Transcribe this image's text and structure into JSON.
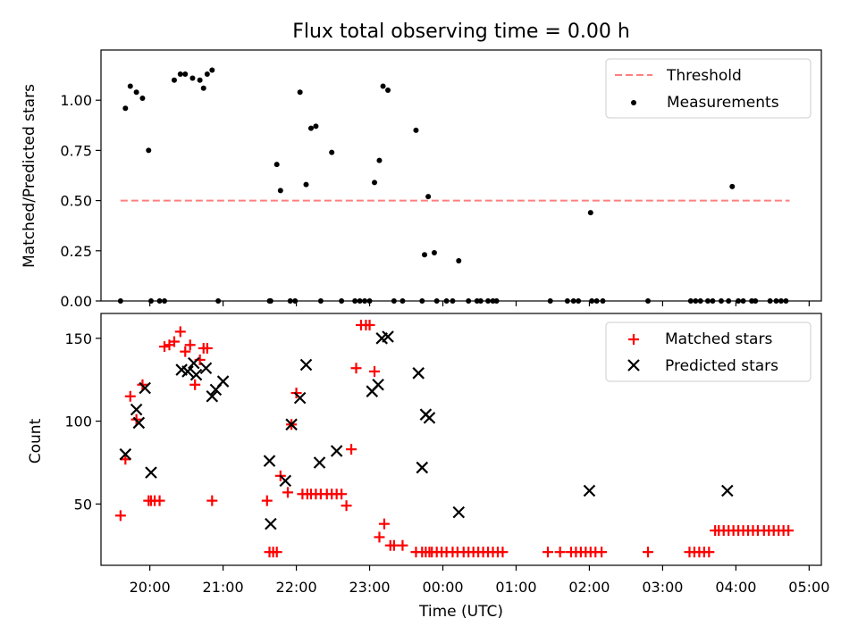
{
  "chart_data": [
    {
      "type": "scatter",
      "title": "Flux total observing time = 0.00 h",
      "xlabel": "",
      "ylabel": "Matched/Predicted stars",
      "xlim": [
        "19:20",
        "05:10"
      ],
      "ylim": [
        0,
        1.25
      ],
      "yticks": [
        "0.00",
        "0.25",
        "0.50",
        "0.75",
        "1.00"
      ],
      "yticks_values": [
        0,
        0.25,
        0.5,
        0.75,
        1.0
      ],
      "legend": "top-right",
      "threshold": {
        "name": "Threshold",
        "value": 0.5,
        "x_start": "19:36",
        "x_end": "04:44",
        "color": "#ff7f7f"
      },
      "series": [
        {
          "name": "Measurements",
          "color": "#000000",
          "x": [
            "19:36",
            "19:40",
            "19:44",
            "19:49",
            "19:54",
            "19:59",
            "20:01",
            "20:08",
            "20:12",
            "20:20",
            "20:25",
            "20:29",
            "20:35",
            "20:41",
            "20:44",
            "20:47",
            "20:51",
            "20:56",
            "21:38",
            "21:39",
            "21:44",
            "21:47",
            "21:55",
            "21:59",
            "22:03",
            "22:08",
            "22:12",
            "22:16",
            "22:20",
            "22:29",
            "22:37",
            "22:48",
            "22:52",
            "22:56",
            "23:00",
            "23:04",
            "23:08",
            "23:11",
            "23:15",
            "23:20",
            "23:27",
            "23:38",
            "23:43",
            "23:45",
            "23:48",
            "23:53",
            "23:55",
            "00:03",
            "00:08",
            "00:13",
            "00:21",
            "00:28",
            "00:31",
            "00:37",
            "00:41",
            "00:44",
            "01:28",
            "01:42",
            "01:47",
            "01:51",
            "02:01",
            "02:02",
            "02:06",
            "02:11",
            "02:48",
            "03:23",
            "03:27",
            "03:31",
            "03:37",
            "03:41",
            "03:48",
            "03:54",
            "03:57",
            "04:02",
            "04:06",
            "04:13",
            "04:16",
            "04:28",
            "04:33",
            "04:37",
            "04:41"
          ],
          "y": [
            0,
            0.96,
            1.07,
            1.04,
            1.01,
            0.75,
            0,
            0,
            0,
            1.1,
            1.13,
            1.13,
            1.11,
            1.1,
            1.06,
            1.13,
            1.15,
            0,
            0,
            0,
            0.68,
            0.55,
            0,
            0,
            1.04,
            0.58,
            0.86,
            0.87,
            0,
            0.74,
            0,
            0,
            0,
            0,
            0,
            0.59,
            0.7,
            1.07,
            1.05,
            0,
            0,
            0.85,
            0,
            0.23,
            0.52,
            0.24,
            0,
            0,
            0,
            0.2,
            0,
            0,
            0,
            0,
            0,
            0,
            0,
            0,
            0,
            0,
            0.44,
            0,
            0,
            0,
            0,
            0,
            0,
            0,
            0,
            0,
            0,
            0,
            0.57,
            0,
            0,
            0,
            0,
            0,
            0,
            0,
            0
          ]
        }
      ]
    },
    {
      "type": "scatter",
      "title": "",
      "xlabel": "Time (UTC)",
      "ylabel": "Count",
      "xlim": [
        "19:20",
        "05:10"
      ],
      "ylim": [
        13,
        165
      ],
      "xticks": [
        "20:00",
        "21:00",
        "22:00",
        "23:00",
        "00:00",
        "01:00",
        "02:00",
        "03:00",
        "04:00",
        "05:00"
      ],
      "xticks_values": [
        "20:00",
        "21:00",
        "22:00",
        "23:00",
        "00:00",
        "01:00",
        "02:00",
        "03:00",
        "04:00",
        "05:00"
      ],
      "yticks": [
        "50",
        "100",
        "150"
      ],
      "yticks_values": [
        50,
        100,
        150
      ],
      "legend": "top-right",
      "series": [
        {
          "name": "Matched stars",
          "color": "#ff0000",
          "marker": "+",
          "x": [
            "19:36",
            "19:40",
            "19:44",
            "19:49",
            "19:54",
            "19:59",
            "20:01",
            "20:04",
            "20:08",
            "20:12",
            "20:16",
            "20:20",
            "20:25",
            "20:29",
            "20:33",
            "20:37",
            "20:41",
            "20:44",
            "20:47",
            "20:51",
            "21:36",
            "21:38",
            "21:41",
            "21:44",
            "21:47",
            "21:53",
            "21:56",
            "22:00",
            "22:05",
            "22:09",
            "22:12",
            "22:16",
            "22:20",
            "22:25",
            "22:29",
            "22:33",
            "22:37",
            "22:41",
            "22:45",
            "22:49",
            "22:53",
            "22:57",
            "23:00",
            "23:04",
            "23:08",
            "23:12",
            "23:17",
            "23:20",
            "23:27",
            "23:38",
            "23:43",
            "23:46",
            "23:49",
            "23:51",
            "23:55",
            "23:59",
            "00:03",
            "00:08",
            "00:12",
            "00:17",
            "00:21",
            "00:25",
            "00:29",
            "00:33",
            "00:37",
            "00:41",
            "00:45",
            "00:49",
            "01:26",
            "01:36",
            "01:45",
            "01:49",
            "01:53",
            "01:57",
            "02:01",
            "02:05",
            "02:10",
            "02:48",
            "03:22",
            "03:26",
            "03:30",
            "03:34",
            "03:38",
            "03:43",
            "03:46",
            "03:50",
            "03:54",
            "03:58",
            "04:02",
            "04:06",
            "04:10",
            "04:14",
            "04:18",
            "04:23",
            "04:27",
            "04:31",
            "04:35",
            "04:39",
            "04:43"
          ],
          "y": [
            43,
            77,
            115,
            101,
            122,
            52,
            52,
            52,
            52,
            145,
            146,
            148,
            154,
            142,
            146,
            122,
            137,
            144,
            144,
            52,
            52,
            21,
            21,
            21,
            67,
            57,
            98,
            117,
            56,
            56,
            56,
            56,
            56,
            56,
            56,
            56,
            56,
            49,
            83,
            132,
            158,
            158,
            158,
            130,
            30,
            38,
            25,
            25,
            25,
            21,
            21,
            21,
            21,
            21,
            21,
            21,
            21,
            21,
            21,
            21,
            21,
            21,
            21,
            21,
            21,
            21,
            21,
            21,
            21,
            21,
            21,
            21,
            21,
            21,
            21,
            21,
            21,
            21,
            21,
            21,
            21,
            21,
            21,
            34,
            34,
            34,
            34,
            34,
            34,
            34,
            34,
            34,
            34,
            34,
            34,
            34,
            34,
            34,
            34
          ],
          "_note": ""
        },
        {
          "name": "Predicted stars",
          "color": "#000000",
          "marker": "x",
          "x": [
            "19:40",
            "19:49",
            "19:51",
            "19:56",
            "20:01",
            "20:26",
            "20:31",
            "20:36",
            "20:38",
            "20:46",
            "20:51",
            "20:54",
            "21:00",
            "21:38",
            "21:39",
            "21:51",
            "21:56",
            "22:03",
            "22:08",
            "22:19",
            "22:33",
            "23:02",
            "23:07",
            "23:10",
            "23:15",
            "23:40",
            "23:43",
            "23:46",
            "23:49",
            "00:13",
            "02:00",
            "03:53"
          ],
          "y": [
            80,
            107,
            99,
            120,
            69,
            131,
            130,
            135,
            128,
            132,
            115,
            119,
            124,
            76,
            38,
            64,
            98,
            114,
            134,
            75,
            82,
            118,
            122,
            150,
            151,
            129,
            72,
            104,
            102,
            45,
            58,
            58
          ]
        }
      ]
    }
  ]
}
